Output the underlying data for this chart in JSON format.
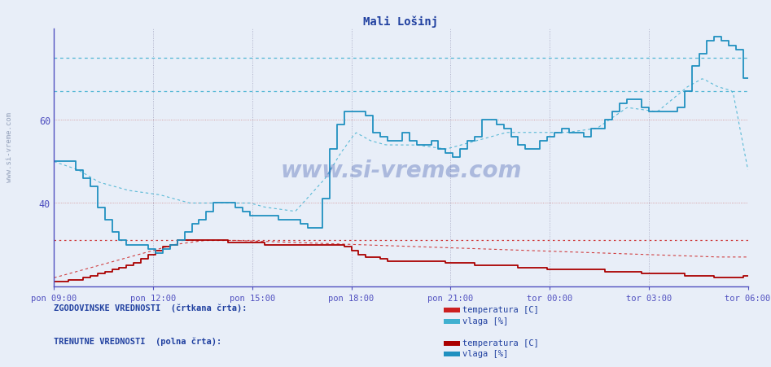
{
  "title": "Mali Lošinj",
  "background_color": "#e8eef8",
  "plot_bg_color": "#e8eef8",
  "grid_color_v": "#c0c8d8",
  "grid_color_h": "#d0b0b0",
  "axis_color": "#5050c0",
  "title_color": "#2040a0",
  "watermark_text": "www.si-vreme.com",
  "watermark_color": "#2040a0",
  "watermark_alpha": 0.3,
  "ylim": [
    20,
    82
  ],
  "yticks": [
    40,
    60
  ],
  "xlabel_ticks": [
    "pon 09:00",
    "pon 12:00",
    "pon 15:00",
    "pon 18:00",
    "pon 21:00",
    "tor 00:00",
    "tor 03:00",
    "tor 06:00"
  ],
  "n_points": 288,
  "hist_temp_color": "#cc2020",
  "hist_humid_color": "#40b0d0",
  "curr_temp_color": "#aa0000",
  "curr_humid_color": "#2090c0",
  "hist_hline_temp": 31.0,
  "hist_hline_humid_high": 75.0,
  "hist_hline_humid_mid": 67.0,
  "legend_text_color": "#2040a0",
  "legend_bg": "#e8eef8"
}
